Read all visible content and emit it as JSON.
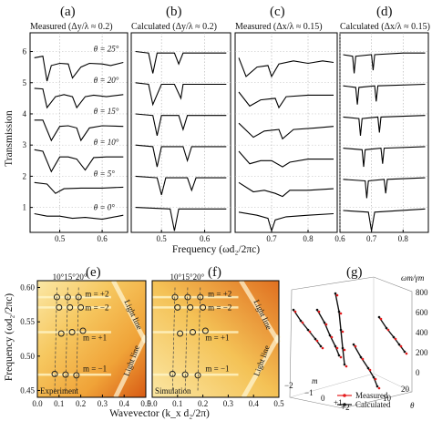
{
  "shared": {
    "ylabel": "Transmission",
    "xlabel": "Frequency (ωd₂/2πc)",
    "bottom_ylabel": "Frequency (ωd₂/2πc)",
    "bottom_xlabel": "Wavevector (k_x d₂/2π)"
  },
  "chart_data": [
    {
      "type": "line",
      "panel": "(a)",
      "title": "Measured (Δy/λ ≈ 0.2)",
      "xlim": [
        0.43,
        0.66
      ],
      "ylim": [
        0.2,
        6.6
      ],
      "xticks": [
        "0.5",
        "0.6"
      ],
      "yticks": [
        "1",
        "2",
        "3",
        "4",
        "5",
        "6"
      ],
      "annotations": [
        "θ = 25°",
        "θ = 20°",
        "θ = 15°",
        "θ = 10°",
        "θ = 5°",
        "θ = 0°"
      ],
      "series": [
        {
          "values": [
            [
              0.44,
              5.8
            ],
            [
              0.46,
              5.85
            ],
            [
              0.47,
              5.05
            ],
            [
              0.48,
              5.55
            ],
            [
              0.5,
              5.62
            ],
            [
              0.52,
              5.6
            ],
            [
              0.53,
              5.15
            ],
            [
              0.55,
              5.5
            ],
            [
              0.57,
              5.62
            ],
            [
              0.6,
              5.6
            ],
            [
              0.62,
              5.55
            ],
            [
              0.65,
              5.65
            ]
          ]
        },
        {
          "values": [
            [
              0.44,
              4.82
            ],
            [
              0.46,
              4.8
            ],
            [
              0.47,
              4.2
            ],
            [
              0.49,
              4.55
            ],
            [
              0.51,
              4.62
            ],
            [
              0.53,
              4.55
            ],
            [
              0.54,
              4.2
            ],
            [
              0.56,
              4.55
            ],
            [
              0.58,
              4.6
            ],
            [
              0.61,
              4.55
            ],
            [
              0.65,
              4.62
            ]
          ]
        },
        {
          "values": [
            [
              0.44,
              3.8
            ],
            [
              0.46,
              3.8
            ],
            [
              0.48,
              3.15
            ],
            [
              0.5,
              3.6
            ],
            [
              0.52,
              3.62
            ],
            [
              0.54,
              3.55
            ],
            [
              0.55,
              3.15
            ],
            [
              0.57,
              3.55
            ],
            [
              0.6,
              3.62
            ],
            [
              0.65,
              3.6
            ]
          ]
        },
        {
          "values": [
            [
              0.44,
              2.85
            ],
            [
              0.46,
              2.8
            ],
            [
              0.48,
              2.15
            ],
            [
              0.5,
              2.62
            ],
            [
              0.52,
              2.62
            ],
            [
              0.54,
              2.55
            ],
            [
              0.56,
              2.2
            ],
            [
              0.58,
              2.6
            ],
            [
              0.61,
              2.62
            ],
            [
              0.65,
              2.62
            ]
          ]
        },
        {
          "values": [
            [
              0.44,
              1.8
            ],
            [
              0.47,
              1.75
            ],
            [
              0.49,
              1.45
            ],
            [
              0.51,
              1.6
            ],
            [
              0.55,
              1.62
            ],
            [
              0.6,
              1.62
            ],
            [
              0.65,
              1.65
            ]
          ]
        },
        {
          "values": [
            [
              0.44,
              0.8
            ],
            [
              0.47,
              0.72
            ],
            [
              0.5,
              0.72
            ],
            [
              0.53,
              0.65
            ],
            [
              0.56,
              0.68
            ],
            [
              0.6,
              0.62
            ],
            [
              0.65,
              0.75
            ]
          ]
        }
      ]
    },
    {
      "type": "line",
      "panel": "(b)",
      "title": "Calculated (Δy/λ ≈ 0.2)",
      "xlim": [
        0.43,
        0.66
      ],
      "ylim": [
        0.2,
        6.6
      ],
      "xticks": [
        "0.5",
        "0.6"
      ],
      "series": [
        {
          "values": [
            [
              0.44,
              6.0
            ],
            [
              0.47,
              5.95
            ],
            [
              0.48,
              5.3
            ],
            [
              0.49,
              5.95
            ],
            [
              0.53,
              5.95
            ],
            [
              0.54,
              5.6
            ],
            [
              0.55,
              5.95
            ],
            [
              0.6,
              5.95
            ],
            [
              0.65,
              5.95
            ]
          ]
        },
        {
          "values": [
            [
              0.44,
              5.0
            ],
            [
              0.47,
              4.95
            ],
            [
              0.48,
              4.3
            ],
            [
              0.5,
              4.95
            ],
            [
              0.53,
              4.95
            ],
            [
              0.545,
              4.5
            ],
            [
              0.55,
              4.95
            ],
            [
              0.6,
              4.95
            ],
            [
              0.65,
              4.95
            ]
          ]
        },
        {
          "values": [
            [
              0.44,
              4.0
            ],
            [
              0.48,
              3.95
            ],
            [
              0.49,
              3.3
            ],
            [
              0.5,
              3.95
            ],
            [
              0.54,
              3.95
            ],
            [
              0.55,
              3.5
            ],
            [
              0.56,
              3.95
            ],
            [
              0.65,
              3.95
            ]
          ]
        },
        {
          "values": [
            [
              0.44,
              3.0
            ],
            [
              0.48,
              2.95
            ],
            [
              0.49,
              2.3
            ],
            [
              0.5,
              2.95
            ],
            [
              0.55,
              2.95
            ],
            [
              0.56,
              2.5
            ],
            [
              0.57,
              2.95
            ],
            [
              0.65,
              2.95
            ]
          ]
        },
        {
          "values": [
            [
              0.44,
              2.0
            ],
            [
              0.49,
              1.95
            ],
            [
              0.5,
              1.4
            ],
            [
              0.51,
              1.95
            ],
            [
              0.56,
              1.95
            ],
            [
              0.57,
              1.55
            ],
            [
              0.58,
              1.95
            ],
            [
              0.65,
              1.95
            ]
          ]
        },
        {
          "values": [
            [
              0.44,
              1.0
            ],
            [
              0.52,
              0.95
            ],
            [
              0.53,
              0.25
            ],
            [
              0.54,
              0.95
            ],
            [
              0.65,
              0.95
            ]
          ]
        }
      ]
    },
    {
      "type": "line",
      "panel": "(c)",
      "title": "Measured (Δx/λ ≈ 0.15)",
      "xlim": [
        0.6,
        0.88
      ],
      "ylim": [
        0.2,
        6.6
      ],
      "xticks": [
        "0.7",
        "0.8"
      ],
      "series": [
        {
          "values": [
            [
              0.61,
              5.8
            ],
            [
              0.63,
              5.2
            ],
            [
              0.66,
              5.5
            ],
            [
              0.69,
              5.55
            ],
            [
              0.7,
              5.2
            ],
            [
              0.72,
              5.6
            ],
            [
              0.76,
              5.7
            ],
            [
              0.8,
              5.62
            ],
            [
              0.84,
              5.7
            ],
            [
              0.87,
              5.65
            ]
          ]
        },
        {
          "values": [
            [
              0.61,
              4.7
            ],
            [
              0.64,
              4.25
            ],
            [
              0.67,
              4.45
            ],
            [
              0.71,
              4.5
            ],
            [
              0.72,
              4.2
            ],
            [
              0.74,
              4.55
            ],
            [
              0.8,
              4.6
            ],
            [
              0.87,
              4.6
            ]
          ]
        },
        {
          "values": [
            [
              0.61,
              3.7
            ],
            [
              0.65,
              3.25
            ],
            [
              0.68,
              3.45
            ],
            [
              0.72,
              3.5
            ],
            [
              0.73,
              3.2
            ],
            [
              0.76,
              3.5
            ],
            [
              0.82,
              3.55
            ],
            [
              0.87,
              3.6
            ]
          ]
        },
        {
          "values": [
            [
              0.61,
              2.8
            ],
            [
              0.64,
              2.4
            ],
            [
              0.67,
              2.5
            ],
            [
              0.7,
              2.5
            ],
            [
              0.73,
              2.3
            ],
            [
              0.75,
              2.45
            ],
            [
              0.8,
              2.55
            ],
            [
              0.87,
              2.55
            ]
          ]
        },
        {
          "values": [
            [
              0.61,
              1.8
            ],
            [
              0.65,
              1.5
            ],
            [
              0.68,
              1.55
            ],
            [
              0.71,
              1.45
            ],
            [
              0.73,
              1.35
            ],
            [
              0.75,
              1.55
            ],
            [
              0.8,
              1.55
            ],
            [
              0.87,
              1.6
            ]
          ]
        },
        {
          "values": [
            [
              0.61,
              0.85
            ],
            [
              0.66,
              0.75
            ],
            [
              0.69,
              0.65
            ],
            [
              0.7,
              0.25
            ],
            [
              0.71,
              0.6
            ],
            [
              0.74,
              0.7
            ],
            [
              0.8,
              0.75
            ],
            [
              0.87,
              0.8
            ]
          ]
        }
      ]
    },
    {
      "type": "line",
      "panel": "(d)",
      "title": "Calculated (Δx/λ ≈ 0.15)",
      "xlim": [
        0.6,
        0.88
      ],
      "ylim": [
        0.2,
        6.6
      ],
      "xticks": [
        "0.6",
        "0.7",
        "0.8"
      ],
      "series": [
        {
          "values": [
            [
              0.61,
              5.9
            ],
            [
              0.64,
              5.85
            ],
            [
              0.645,
              5.3
            ],
            [
              0.65,
              5.85
            ],
            [
              0.7,
              5.9
            ],
            [
              0.705,
              5.4
            ],
            [
              0.71,
              5.9
            ],
            [
              0.8,
              5.95
            ],
            [
              0.87,
              5.95
            ]
          ]
        },
        {
          "values": [
            [
              0.61,
              4.9
            ],
            [
              0.65,
              4.85
            ],
            [
              0.655,
              4.3
            ],
            [
              0.66,
              4.85
            ],
            [
              0.71,
              4.9
            ],
            [
              0.715,
              4.4
            ],
            [
              0.72,
              4.9
            ],
            [
              0.87,
              4.95
            ]
          ]
        },
        {
          "values": [
            [
              0.61,
              3.9
            ],
            [
              0.66,
              3.85
            ],
            [
              0.665,
              3.3
            ],
            [
              0.67,
              3.85
            ],
            [
              0.72,
              3.9
            ],
            [
              0.725,
              3.4
            ],
            [
              0.73,
              3.9
            ],
            [
              0.87,
              3.95
            ]
          ]
        },
        {
          "values": [
            [
              0.61,
              2.9
            ],
            [
              0.67,
              2.85
            ],
            [
              0.675,
              2.3
            ],
            [
              0.68,
              2.85
            ],
            [
              0.73,
              2.9
            ],
            [
              0.735,
              2.4
            ],
            [
              0.74,
              2.9
            ],
            [
              0.87,
              2.95
            ]
          ]
        },
        {
          "values": [
            [
              0.61,
              1.9
            ],
            [
              0.68,
              1.85
            ],
            [
              0.685,
              1.3
            ],
            [
              0.69,
              1.85
            ],
            [
              0.74,
              1.9
            ],
            [
              0.745,
              1.45
            ],
            [
              0.75,
              1.9
            ],
            [
              0.87,
              1.95
            ]
          ]
        },
        {
          "values": [
            [
              0.61,
              0.9
            ],
            [
              0.69,
              0.85
            ],
            [
              0.7,
              0.25
            ],
            [
              0.71,
              0.85
            ],
            [
              0.87,
              0.95
            ]
          ]
        }
      ]
    },
    {
      "type": "heatmap",
      "panel": "(e)",
      "xlim": [
        0.0,
        0.5
      ],
      "ylim": [
        0.44,
        0.61
      ],
      "xticks": [
        "0.0",
        "0.1",
        "0.2",
        "0.3",
        "0.4",
        "0.5"
      ],
      "yticks": [
        "0.45",
        "0.50",
        "0.55",
        "0.60"
      ],
      "angle_labels": "10°15°20°",
      "mode_labels": [
        "m = +2",
        "m = −2",
        "m = +1",
        "m = −1"
      ],
      "inset_labels": [
        "Experiment",
        "Light line",
        "Light line"
      ],
      "markers": [
        [
          0.09,
          0.586
        ],
        [
          0.14,
          0.586
        ],
        [
          0.19,
          0.586
        ],
        [
          0.1,
          0.571
        ],
        [
          0.15,
          0.571
        ],
        [
          0.2,
          0.571
        ],
        [
          0.11,
          0.533
        ],
        [
          0.16,
          0.535
        ],
        [
          0.21,
          0.537
        ],
        [
          0.08,
          0.474
        ],
        [
          0.13,
          0.473
        ],
        [
          0.18,
          0.472
        ]
      ]
    },
    {
      "type": "heatmap",
      "panel": "(f)",
      "xlim": [
        0.0,
        0.5
      ],
      "ylim": [
        0.44,
        0.61
      ],
      "xticks": [
        "0.0",
        "0.1",
        "0.2",
        "0.3",
        "0.4",
        "0.5"
      ],
      "angle_labels": "10°15°20°",
      "mode_labels": [
        "m = +2",
        "m = −2",
        "m = +1",
        "m = −1"
      ],
      "inset_labels": [
        "Simulation",
        "Light line",
        "Light line"
      ],
      "markers": [
        [
          0.09,
          0.586
        ],
        [
          0.14,
          0.586
        ],
        [
          0.19,
          0.586
        ],
        [
          0.1,
          0.571
        ],
        [
          0.15,
          0.571
        ],
        [
          0.2,
          0.571
        ],
        [
          0.11,
          0.533
        ],
        [
          0.16,
          0.535
        ],
        [
          0.21,
          0.537
        ],
        [
          0.08,
          0.474
        ],
        [
          0.13,
          0.473
        ],
        [
          0.18,
          0.472
        ]
      ]
    },
    {
      "type": "scatter",
      "panel": "(g)",
      "z_label": "ωm/γm",
      "z_ticks": [
        "0",
        "200",
        "400",
        "600",
        "800"
      ],
      "m_ticks": [
        "−2",
        "−1",
        "0",
        "+1",
        "+2"
      ],
      "theta_ticks": [
        "10",
        "20"
      ],
      "theta_label": "θ",
      "m_label": "m",
      "legend": [
        "Measured",
        "Calculated"
      ],
      "colors": {
        "measured": "#e41a1c",
        "calculated": "#111111"
      }
    }
  ]
}
